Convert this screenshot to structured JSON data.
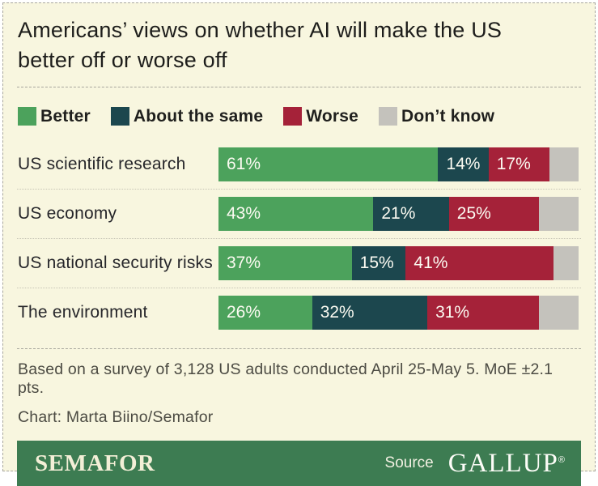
{
  "title": "Americans’ views on whether AI will make the US better off or worse off",
  "chart_data": {
    "type": "bar",
    "orientation": "horizontal",
    "stacked": true,
    "unit": "%",
    "xlim": [
      0,
      100
    ],
    "grid": false,
    "legend_position": "top",
    "categories": [
      "US scientific research",
      "US economy",
      "US national security risks",
      "The environment"
    ],
    "series": [
      {
        "key": "better",
        "name": "Better",
        "color": "#4CA25C",
        "values": [
          61,
          43,
          37,
          26
        ],
        "labeled": true
      },
      {
        "key": "about-the-same",
        "name": "About the same",
        "color": "#1C474E",
        "values": [
          14,
          21,
          15,
          32
        ],
        "labeled": true
      },
      {
        "key": "worse",
        "name": "Worse",
        "color": "#A52239",
        "values": [
          17,
          25,
          41,
          31
        ],
        "labeled": true
      },
      {
        "key": "dont-know",
        "name": "Don’t know",
        "color": "#C4C2BC",
        "values": [
          8,
          11,
          7,
          11
        ],
        "labeled": false
      }
    ]
  },
  "notes": {
    "survey": "Based on a survey of 3,128 US adults conducted April 25-May 5. MoE ±2.1 pts.",
    "credit": "Chart: Marta Biino/Semafor"
  },
  "footer": {
    "brand": "SEMAFOR",
    "source_label": "Source",
    "source_name": "GALLUP",
    "source_mark": "®"
  },
  "colors": {
    "background": "#F8F6DF",
    "card_border": "#A8A79D",
    "footer_bar": "#3D7C52",
    "better": "#4CA25C",
    "about_the_same": "#1C474E",
    "worse": "#A52239",
    "dont_know": "#C4C2BC"
  }
}
